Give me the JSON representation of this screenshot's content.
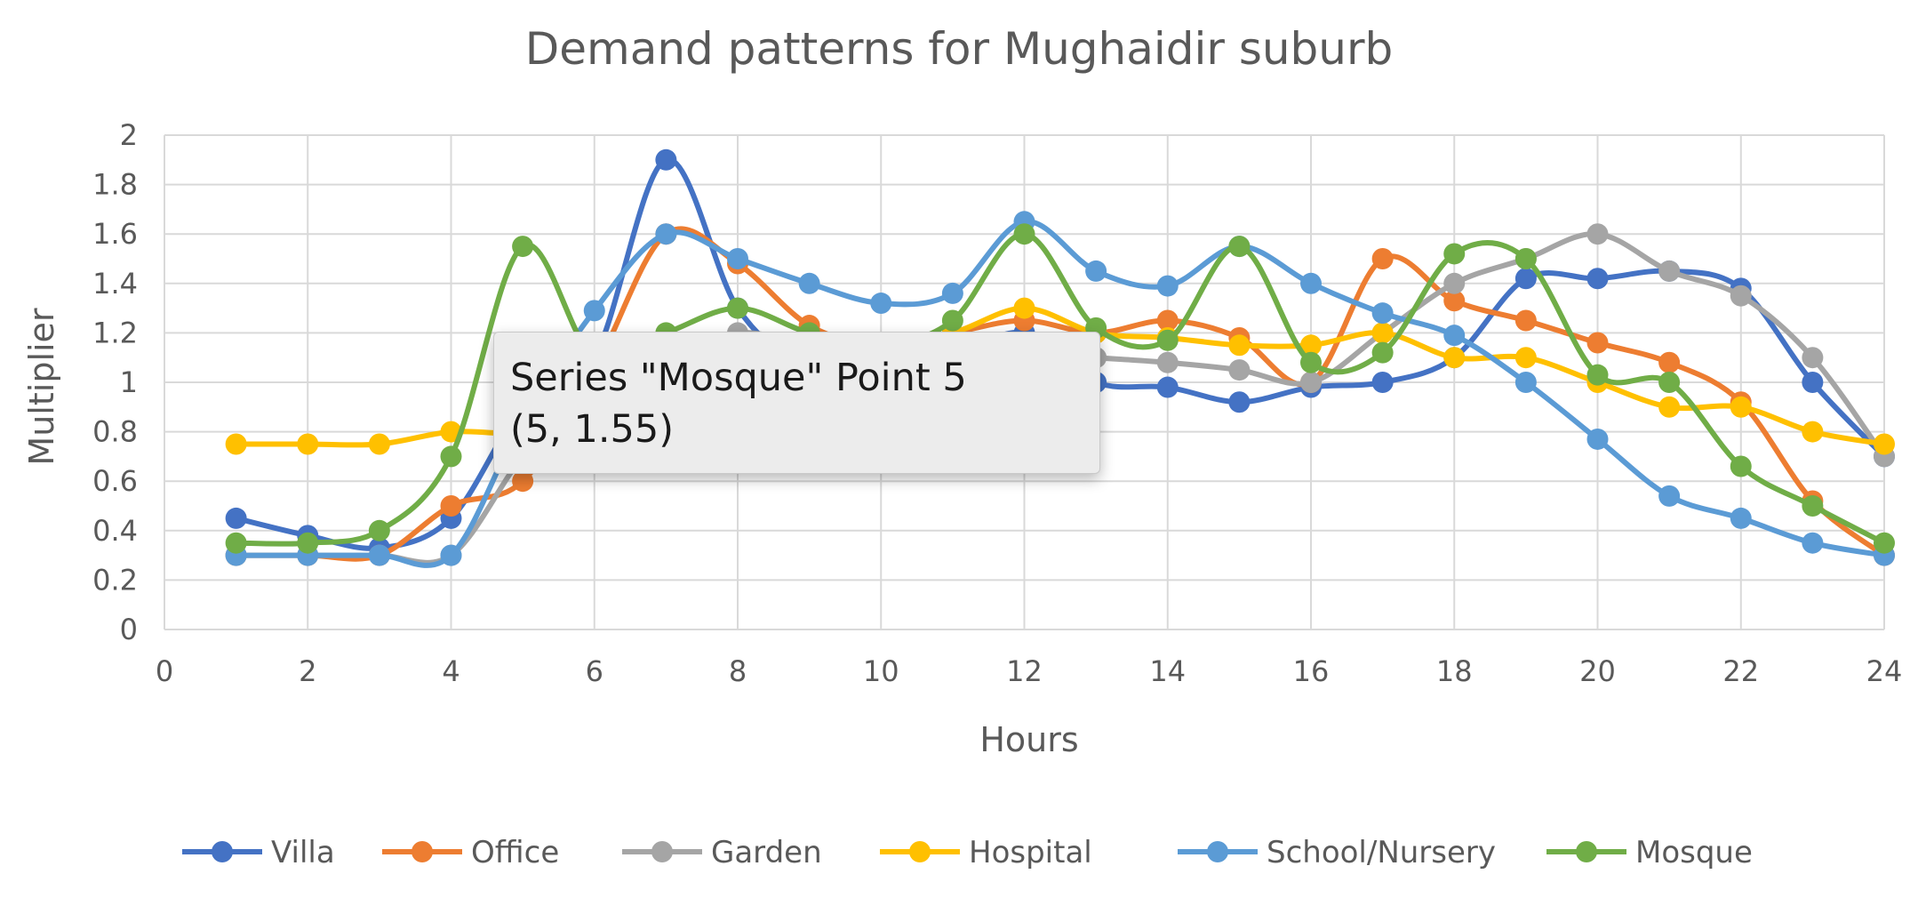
{
  "chart_data": {
    "type": "line",
    "title": "Demand patterns for Mughaidir suburb",
    "xlabel": "Hours",
    "ylabel": "Multiplier",
    "xlim": [
      0,
      24
    ],
    "ylim": [
      0,
      2
    ],
    "xticks": [
      0,
      2,
      4,
      6,
      8,
      10,
      12,
      14,
      16,
      18,
      20,
      22,
      24
    ],
    "yticks": [
      0,
      0.2,
      0.4,
      0.6,
      0.8,
      1,
      1.2,
      1.4,
      1.6,
      1.8,
      2
    ],
    "xtick_labels": [
      "0",
      "2",
      "4",
      "6",
      "8",
      "10",
      "12",
      "14",
      "16",
      "18",
      "20",
      "22",
      "24"
    ],
    "ytick_labels": [
      "0",
      "0.2",
      "0.4",
      "0.6",
      "0.8",
      "1",
      "1.2",
      "1.4",
      "1.6",
      "1.8",
      "2"
    ],
    "grid": true,
    "smoothed": true,
    "legend_position": "bottom",
    "x": [
      1,
      2,
      3,
      4,
      5,
      6,
      7,
      8,
      9,
      10,
      11,
      12,
      13,
      14,
      15,
      16,
      17,
      18,
      19,
      20,
      21,
      22,
      23,
      24
    ],
    "series": [
      {
        "name": "Villa",
        "color": "#4472C4",
        "values": [
          0.45,
          0.38,
          0.33,
          0.45,
          0.9,
          1.1,
          1.9,
          1.3,
          1.05,
          1.0,
          1.1,
          1.2,
          1.0,
          0.98,
          0.92,
          0.98,
          1.0,
          1.1,
          1.42,
          1.42,
          1.45,
          1.38,
          1.0,
          0.7
        ]
      },
      {
        "name": "Office",
        "color": "#ED7D31",
        "values": [
          0.3,
          0.3,
          0.3,
          0.5,
          0.6,
          1.05,
          1.6,
          1.48,
          1.23,
          1.15,
          1.2,
          1.25,
          1.2,
          1.25,
          1.18,
          1.0,
          1.5,
          1.33,
          1.25,
          1.16,
          1.08,
          0.92,
          0.52,
          0.3
        ]
      },
      {
        "name": "Garden",
        "color": "#A5A5A5",
        "values": [
          0.3,
          0.3,
          0.3,
          0.3,
          0.7,
          1.0,
          1.1,
          1.2,
          1.15,
          1.1,
          1.1,
          1.12,
          1.1,
          1.08,
          1.05,
          1.0,
          1.2,
          1.4,
          1.5,
          1.6,
          1.45,
          1.35,
          1.1,
          0.7
        ]
      },
      {
        "name": "Hospital",
        "color": "#FFC000",
        "values": [
          0.75,
          0.75,
          0.75,
          0.8,
          0.8,
          0.9,
          1.0,
          1.05,
          1.1,
          1.15,
          1.2,
          1.3,
          1.2,
          1.18,
          1.15,
          1.15,
          1.2,
          1.1,
          1.1,
          1.0,
          0.9,
          0.9,
          0.8,
          0.75
        ]
      },
      {
        "name": "School/Nursery",
        "color": "#5B9BD5",
        "values": [
          0.3,
          0.3,
          0.3,
          0.3,
          0.85,
          1.29,
          1.6,
          1.5,
          1.4,
          1.32,
          1.36,
          1.65,
          1.45,
          1.39,
          1.55,
          1.4,
          1.28,
          1.19,
          1.0,
          0.77,
          0.54,
          0.45,
          0.35,
          0.3
        ]
      },
      {
        "name": "Mosque",
        "color": "#70AD47",
        "values": [
          0.35,
          0.35,
          0.4,
          0.7,
          1.55,
          1.1,
          1.2,
          1.3,
          1.2,
          1.15,
          1.25,
          1.6,
          1.22,
          1.17,
          1.55,
          1.08,
          1.12,
          1.52,
          1.5,
          1.03,
          1.0,
          0.66,
          0.5,
          0.35
        ]
      }
    ]
  },
  "tooltip": {
    "line1": "Series \"Mosque\" Point 5",
    "line2": "(5, 1.55)"
  }
}
